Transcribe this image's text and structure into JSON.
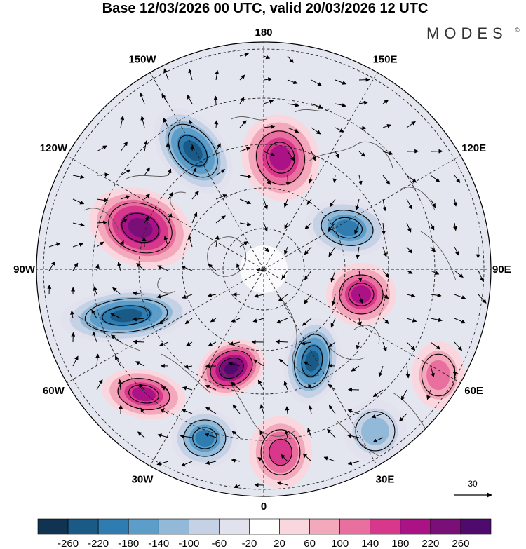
{
  "title": "Base 12/03/2026 00 UTC, valid 20/03/2026 12 UTC",
  "brand": "MODES",
  "brand_mark": "©",
  "projection": "north-polar-stereographic",
  "meridian_labels": [
    {
      "name": "lon-0",
      "text": "0"
    },
    {
      "name": "lon-30e",
      "text": "30E"
    },
    {
      "name": "lon-60e",
      "text": "60E"
    },
    {
      "name": "lon-90e",
      "text": "90E"
    },
    {
      "name": "lon-120e",
      "text": "120E"
    },
    {
      "name": "lon-150e",
      "text": "150E"
    },
    {
      "name": "lon-180",
      "text": "180"
    },
    {
      "name": "lon-150w",
      "text": "150W"
    },
    {
      "name": "lon-120w",
      "text": "120W"
    },
    {
      "name": "lon-90w",
      "text": "90W"
    },
    {
      "name": "lon-60w",
      "text": "60W"
    },
    {
      "name": "lon-30w",
      "text": "30W"
    }
  ],
  "reference_vector": {
    "label": "30"
  },
  "colorbar": {
    "ticks": [
      "-260",
      "-220",
      "-180",
      "-140",
      "-100",
      "-60",
      "-20",
      "20",
      "60",
      "100",
      "140",
      "180",
      "220",
      "260"
    ],
    "colors": [
      "#0f3350",
      "#1a5a86",
      "#2f7cb1",
      "#5c9dc9",
      "#93b9d8",
      "#c5d2e6",
      "#e2e2ef",
      "#ffffff",
      "#fad7de",
      "#f4a8bb",
      "#e9709e",
      "#d8388c",
      "#aa1286",
      "#7a0f78",
      "#4f0a6e"
    ]
  },
  "anomaly_centers": [
    {
      "name": "low-alaska",
      "value": -240
    },
    {
      "name": "high-bering",
      "value": 200
    },
    {
      "name": "high-canada",
      "value": 220
    },
    {
      "name": "low-atlantic-west",
      "value": -220
    },
    {
      "name": "low-east-siberia",
      "value": -180
    },
    {
      "name": "high-siberia",
      "value": 200
    },
    {
      "name": "low-barents",
      "value": -220
    },
    {
      "name": "high-greenland-sea",
      "value": 260
    },
    {
      "name": "high-north-atlantic",
      "value": 200
    },
    {
      "name": "low-azores",
      "value": -180
    },
    {
      "name": "high-europe",
      "value": 140
    },
    {
      "name": "low-black-sea",
      "value": -100
    },
    {
      "name": "high-kazakhstan",
      "value": 100
    }
  ]
}
